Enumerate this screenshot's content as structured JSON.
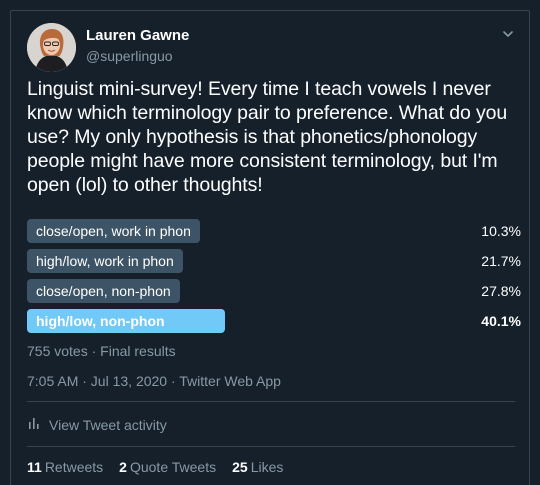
{
  "author": {
    "name": "Lauren Gawne",
    "handle": "@superlinguo"
  },
  "tweet": {
    "text": "Linguist mini-survey! Every time I teach vowels I never know which terminology pair to preference. What do you use? My only hypothesis is that phonetics/phonology people might have more consistent terminology, but I'm open (lol) to other thoughts!"
  },
  "poll": {
    "options": [
      {
        "label": "close/open, work in phon",
        "percent_label": "10.3%",
        "percent": 10.3,
        "winner": false
      },
      {
        "label": "high/low, work in phon",
        "percent_label": "21.7%",
        "percent": 21.7,
        "winner": false
      },
      {
        "label": "close/open, non-phon",
        "percent_label": "27.8%",
        "percent": 27.8,
        "winner": false
      },
      {
        "label": "high/low, non-phon",
        "percent_label": "40.1%",
        "percent": 40.1,
        "winner": true
      }
    ],
    "summary": "755 votes · Final results"
  },
  "meta": "7:05 AM · Jul 13, 2020 · Twitter Web App",
  "activity_label": "View Tweet activity",
  "stats": {
    "retweets_count": "11",
    "retweets_label": "Retweets",
    "quotes_count": "2",
    "quotes_label": "Quote Tweets",
    "likes_count": "25",
    "likes_label": "Likes"
  },
  "colors": {
    "background": "#15202b",
    "bar": "#3d5466",
    "bar_winner": "#71c9f8",
    "secondary_text": "#8899a6"
  },
  "icons": [
    "chevron-down-icon",
    "activity-icon",
    "avatar"
  ]
}
